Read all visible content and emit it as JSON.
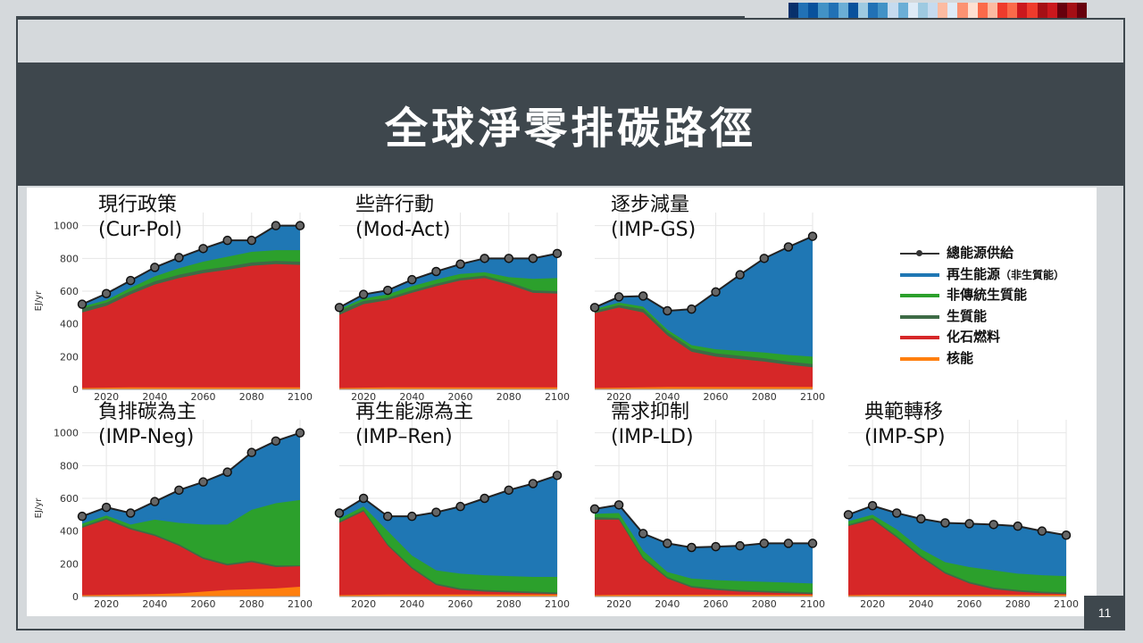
{
  "slide": {
    "title": "全球淨零排碳路徑",
    "page_number": "11",
    "stripe_colors": [
      "#08306b",
      "#2171b5",
      "#08519c",
      "#4292c6",
      "#2171b5",
      "#6baed6",
      "#08519c",
      "#9ecae1",
      "#2171b5",
      "#4292c6",
      "#c6dbef",
      "#6baed6",
      "#deebf7",
      "#9ecae1",
      "#c6dbef",
      "#fcbba1",
      "#deebf7",
      "#fc9272",
      "#fee0d2",
      "#fb6a4a",
      "#fcbba1",
      "#ef3b2c",
      "#fb6a4a",
      "#cb181d",
      "#ef3b2c",
      "#a50f15",
      "#cb181d",
      "#67000d",
      "#a50f15",
      "#67000d"
    ]
  },
  "legend": {
    "items": [
      {
        "key": "total",
        "label": "總能源供給",
        "color": "#333333"
      },
      {
        "key": "renew",
        "label": "再生能源",
        "label_small": "（非生質能）",
        "color": "#1f77b4"
      },
      {
        "key": "nonbio",
        "label": "非傳統生質能",
        "color": "#2ca02c"
      },
      {
        "key": "bio",
        "label": "生質能",
        "color": "#3e6b46"
      },
      {
        "key": "fossil",
        "label": "化石燃料",
        "color": "#d62728"
      },
      {
        "key": "nuclear",
        "label": "核能",
        "color": "#ff7f0e"
      }
    ]
  },
  "chart_data": [
    {
      "type": "area",
      "title": "現行政策",
      "subtitle": "(Cur-Pol)",
      "ylabel": "EJ/yr",
      "x": [
        2010,
        2020,
        2030,
        2040,
        2050,
        2060,
        2070,
        2080,
        2090,
        2100
      ],
      "xticks": [
        2020,
        2040,
        2060,
        2080,
        2100
      ],
      "yticks": [
        0,
        200,
        400,
        600,
        800,
        1000
      ],
      "ylim": [
        0,
        1080
      ],
      "xlim": [
        2010,
        2100
      ],
      "nuclear": [
        8,
        10,
        12,
        12,
        12,
        12,
        12,
        12,
        12,
        12
      ],
      "fossil": [
        470,
        510,
        580,
        640,
        680,
        710,
        730,
        755,
        765,
        760
      ],
      "bio": [
        495,
        530,
        600,
        660,
        700,
        730,
        750,
        775,
        785,
        780
      ],
      "nonbio": [
        505,
        545,
        620,
        690,
        740,
        780,
        810,
        840,
        850,
        850
      ],
      "total": [
        520,
        585,
        665,
        745,
        805,
        860,
        910,
        910,
        1000,
        1000
      ]
    },
    {
      "type": "area",
      "title": "些許行動",
      "subtitle": "(Mod-Act)",
      "ylabel": "",
      "x": [
        2010,
        2020,
        2030,
        2040,
        2050,
        2060,
        2070,
        2080,
        2090,
        2100
      ],
      "xticks": [
        2020,
        2040,
        2060,
        2080,
        2100
      ],
      "yticks": [
        0,
        200,
        400,
        600,
        800,
        1000
      ],
      "ylim": [
        0,
        1080
      ],
      "xlim": [
        2010,
        2100
      ],
      "nuclear": [
        8,
        10,
        12,
        12,
        12,
        12,
        12,
        12,
        12,
        12
      ],
      "fossil": [
        455,
        520,
        545,
        590,
        630,
        665,
        680,
        640,
        590,
        585
      ],
      "bio": [
        480,
        540,
        560,
        605,
        645,
        680,
        695,
        655,
        605,
        600
      ],
      "nonbio": [
        490,
        555,
        580,
        630,
        670,
        705,
        715,
        685,
        675,
        680
      ],
      "total": [
        500,
        580,
        605,
        670,
        720,
        765,
        800,
        800,
        800,
        830
      ]
    },
    {
      "type": "area",
      "title": "逐步減量",
      "subtitle": "(IMP-GS)",
      "ylabel": "",
      "x": [
        2010,
        2020,
        2030,
        2040,
        2050,
        2060,
        2070,
        2080,
        2090,
        2100
      ],
      "xticks": [
        2020,
        2040,
        2060,
        2080,
        2100
      ],
      "yticks": [
        0,
        200,
        400,
        600,
        800,
        1000
      ],
      "ylim": [
        0,
        1080
      ],
      "xlim": [
        2010,
        2100
      ],
      "nuclear": [
        8,
        10,
        12,
        14,
        14,
        14,
        14,
        14,
        14,
        14
      ],
      "fossil": [
        465,
        500,
        470,
        330,
        230,
        200,
        185,
        170,
        150,
        135
      ],
      "bio": [
        480,
        515,
        490,
        350,
        250,
        220,
        205,
        190,
        170,
        155
      ],
      "nonbio": [
        490,
        530,
        505,
        365,
        270,
        245,
        235,
        225,
        210,
        200
      ],
      "total": [
        500,
        565,
        570,
        480,
        490,
        595,
        700,
        800,
        870,
        935
      ]
    },
    {
      "type": "area",
      "title": "負排碳為主",
      "subtitle": "(IMP-Neg)",
      "ylabel": "EJ/yr",
      "x": [
        2010,
        2020,
        2030,
        2040,
        2050,
        2060,
        2070,
        2080,
        2090,
        2100
      ],
      "xticks": [
        2020,
        2040,
        2060,
        2080,
        2100
      ],
      "yticks": [
        0,
        200,
        400,
        600,
        800,
        1000
      ],
      "ylim": [
        0,
        1080
      ],
      "xlim": [
        2010,
        2100
      ],
      "nuclear": [
        8,
        10,
        12,
        15,
        20,
        30,
        40,
        45,
        50,
        60
      ],
      "fossil": [
        420,
        470,
        410,
        370,
        310,
        230,
        190,
        210,
        180,
        185
      ],
      "bio": [
        430,
        480,
        420,
        380,
        320,
        240,
        200,
        220,
        190,
        190
      ],
      "nonbio": [
        445,
        495,
        440,
        470,
        450,
        440,
        440,
        530,
        570,
        590
      ],
      "total": [
        490,
        545,
        510,
        580,
        650,
        700,
        760,
        880,
        950,
        1000
      ]
    },
    {
      "type": "area",
      "title": "再生能源為主",
      "subtitle": "(IMP–Ren)",
      "ylabel": "",
      "x": [
        2010,
        2020,
        2030,
        2040,
        2050,
        2060,
        2070,
        2080,
        2090,
        2100
      ],
      "xticks": [
        2020,
        2040,
        2060,
        2080,
        2100
      ],
      "yticks": [
        0,
        200,
        400,
        600,
        800,
        1000
      ],
      "ylim": [
        0,
        1080
      ],
      "xlim": [
        2010,
        2100
      ],
      "nuclear": [
        8,
        10,
        12,
        12,
        12,
        12,
        12,
        12,
        12,
        12
      ],
      "fossil": [
        450,
        520,
        310,
        170,
        70,
        40,
        30,
        25,
        20,
        15
      ],
      "bio": [
        460,
        530,
        320,
        180,
        80,
        50,
        40,
        35,
        30,
        25
      ],
      "nonbio": [
        475,
        550,
        400,
        250,
        160,
        140,
        130,
        125,
        120,
        120
      ],
      "total": [
        510,
        600,
        490,
        490,
        515,
        550,
        600,
        650,
        690,
        740
      ]
    },
    {
      "type": "area",
      "title": "需求抑制",
      "subtitle": "(IMP-LD)",
      "ylabel": "",
      "x": [
        2010,
        2020,
        2030,
        2040,
        2050,
        2060,
        2070,
        2080,
        2090,
        2100
      ],
      "xticks": [
        2020,
        2040,
        2060,
        2080,
        2100
      ],
      "yticks": [
        0,
        200,
        400,
        600,
        800,
        1000
      ],
      "ylim": [
        0,
        1080
      ],
      "xlim": [
        2010,
        2100
      ],
      "nuclear": [
        8,
        10,
        10,
        10,
        10,
        10,
        10,
        10,
        10,
        10
      ],
      "fossil": [
        470,
        470,
        230,
        110,
        55,
        40,
        30,
        25,
        20,
        15
      ],
      "bio": [
        485,
        480,
        240,
        120,
        65,
        50,
        40,
        35,
        30,
        25
      ],
      "nonbio": [
        505,
        510,
        280,
        150,
        110,
        100,
        95,
        90,
        85,
        80
      ],
      "total": [
        535,
        560,
        385,
        325,
        300,
        305,
        310,
        325,
        325,
        325
      ]
    },
    {
      "type": "area",
      "title": "典範轉移",
      "subtitle": "(IMP-SP)",
      "ylabel": "",
      "x": [
        2010,
        2020,
        2030,
        2040,
        2050,
        2060,
        2070,
        2080,
        2090,
        2100
      ],
      "xticks": [
        2020,
        2040,
        2060,
        2080,
        2100
      ],
      "yticks": [
        0,
        200,
        400,
        600,
        800,
        1000
      ],
      "ylim": [
        0,
        1080
      ],
      "xlim": [
        2010,
        2100
      ],
      "nuclear": [
        8,
        10,
        10,
        10,
        10,
        10,
        10,
        10,
        10,
        10
      ],
      "fossil": [
        430,
        470,
        360,
        240,
        140,
        80,
        45,
        30,
        20,
        15
      ],
      "bio": [
        440,
        480,
        370,
        250,
        150,
        90,
        55,
        40,
        30,
        25
      ],
      "nonbio": [
        460,
        500,
        410,
        290,
        210,
        180,
        160,
        140,
        130,
        125
      ],
      "total": [
        500,
        555,
        510,
        475,
        450,
        445,
        440,
        430,
        400,
        375
      ]
    }
  ]
}
